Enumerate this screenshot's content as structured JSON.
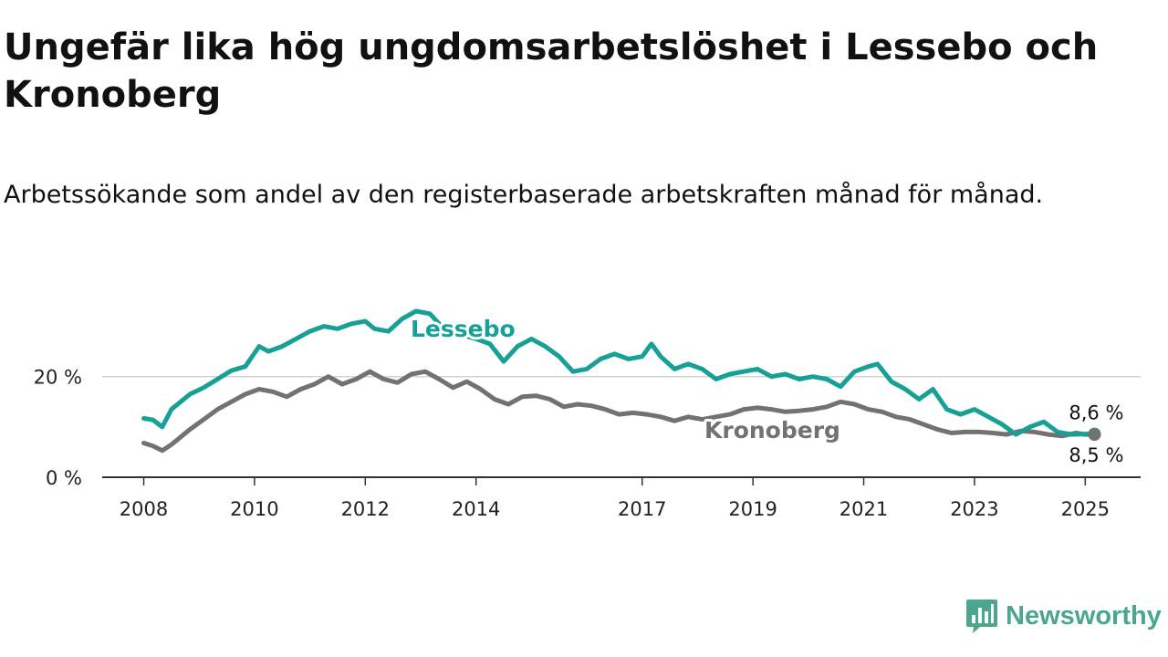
{
  "title": "Ungefär lika hög ungdomsarbetslöshet i Lessebo och Kronoberg",
  "subtitle": "Arbetssökande som andel av den registerbaserade arbetskraften månad för månad.",
  "brand": {
    "name": "Newsworthy",
    "icon": "chart-bubble-icon",
    "color": "#4aa68f"
  },
  "chart_data": {
    "type": "line",
    "x_tick_labels": [
      "2008",
      "2010",
      "2012",
      "2014",
      "2017",
      "2019",
      "2021",
      "2023",
      "2025"
    ],
    "y_tick_labels": [
      "0 %",
      "20 %"
    ],
    "xlim": [
      "2008-01",
      "2025-12"
    ],
    "ylim": [
      0,
      35
    ],
    "grid": true,
    "series": [
      {
        "name": "Lessebo",
        "color": "#17a196",
        "end_label": "8,6 %",
        "points": [
          [
            "2008-01",
            11.7
          ],
          [
            "2008-03",
            11.4
          ],
          [
            "2008-05",
            10.0
          ],
          [
            "2008-07",
            13.5
          ],
          [
            "2008-09",
            15.0
          ],
          [
            "2008-11",
            16.5
          ],
          [
            "2009-02",
            17.8
          ],
          [
            "2009-05",
            19.5
          ],
          [
            "2009-08",
            21.2
          ],
          [
            "2009-11",
            22.0
          ],
          [
            "2010-02",
            26.0
          ],
          [
            "2010-04",
            25.0
          ],
          [
            "2010-07",
            26.0
          ],
          [
            "2010-10",
            27.5
          ],
          [
            "2011-01",
            29.0
          ],
          [
            "2011-04",
            30.0
          ],
          [
            "2011-07",
            29.5
          ],
          [
            "2011-10",
            30.5
          ],
          [
            "2012-01",
            31.0
          ],
          [
            "2012-03",
            29.5
          ],
          [
            "2012-06",
            29.0
          ],
          [
            "2012-09",
            31.5
          ],
          [
            "2012-12",
            33.0
          ],
          [
            "2013-03",
            32.5
          ],
          [
            "2013-06",
            29.5
          ],
          [
            "2013-09",
            28.5
          ],
          [
            "2014-01",
            27.5
          ],
          [
            "2014-04",
            26.5
          ],
          [
            "2014-07",
            23.0
          ],
          [
            "2014-10",
            26.0
          ],
          [
            "2015-01",
            27.5
          ],
          [
            "2015-04",
            26.0
          ],
          [
            "2015-07",
            24.0
          ],
          [
            "2015-10",
            21.0
          ],
          [
            "2016-01",
            21.5
          ],
          [
            "2016-04",
            23.5
          ],
          [
            "2016-07",
            24.5
          ],
          [
            "2016-10",
            23.5
          ],
          [
            "2017-01",
            24.0
          ],
          [
            "2017-03",
            26.5
          ],
          [
            "2017-05",
            24.0
          ],
          [
            "2017-08",
            21.5
          ],
          [
            "2017-11",
            22.5
          ],
          [
            "2018-02",
            21.5
          ],
          [
            "2018-05",
            19.5
          ],
          [
            "2018-08",
            20.5
          ],
          [
            "2018-11",
            21.0
          ],
          [
            "2019-02",
            21.5
          ],
          [
            "2019-05",
            20.0
          ],
          [
            "2019-08",
            20.5
          ],
          [
            "2019-11",
            19.5
          ],
          [
            "2020-02",
            20.0
          ],
          [
            "2020-05",
            19.5
          ],
          [
            "2020-08",
            18.0
          ],
          [
            "2020-11",
            21.0
          ],
          [
            "2021-02",
            22.0
          ],
          [
            "2021-04",
            22.5
          ],
          [
            "2021-07",
            19.0
          ],
          [
            "2021-10",
            17.5
          ],
          [
            "2022-01",
            15.5
          ],
          [
            "2022-04",
            17.5
          ],
          [
            "2022-07",
            13.5
          ],
          [
            "2022-10",
            12.5
          ],
          [
            "2023-01",
            13.5
          ],
          [
            "2023-04",
            12.0
          ],
          [
            "2023-07",
            10.5
          ],
          [
            "2023-10",
            8.5
          ],
          [
            "2024-01",
            10.0
          ],
          [
            "2024-04",
            11.0
          ],
          [
            "2024-07",
            9.0
          ],
          [
            "2024-10",
            8.5
          ],
          [
            "2025-01",
            8.6
          ],
          [
            "2025-03",
            8.6
          ]
        ]
      },
      {
        "name": "Kronoberg",
        "color": "#727272",
        "end_label": "8,5 %",
        "points": [
          [
            "2008-01",
            6.8
          ],
          [
            "2008-03",
            6.2
          ],
          [
            "2008-05",
            5.3
          ],
          [
            "2008-07",
            6.5
          ],
          [
            "2008-09",
            8.0
          ],
          [
            "2008-11",
            9.5
          ],
          [
            "2009-02",
            11.5
          ],
          [
            "2009-05",
            13.5
          ],
          [
            "2009-08",
            15.0
          ],
          [
            "2009-11",
            16.5
          ],
          [
            "2010-02",
            17.5
          ],
          [
            "2010-05",
            17.0
          ],
          [
            "2010-08",
            16.0
          ],
          [
            "2010-11",
            17.5
          ],
          [
            "2011-02",
            18.5
          ],
          [
            "2011-05",
            20.0
          ],
          [
            "2011-08",
            18.5
          ],
          [
            "2011-11",
            19.5
          ],
          [
            "2012-02",
            21.0
          ],
          [
            "2012-05",
            19.5
          ],
          [
            "2012-08",
            18.8
          ],
          [
            "2012-11",
            20.5
          ],
          [
            "2013-02",
            21.0
          ],
          [
            "2013-05",
            19.5
          ],
          [
            "2013-08",
            17.8
          ],
          [
            "2013-11",
            19.0
          ],
          [
            "2014-02",
            17.5
          ],
          [
            "2014-05",
            15.5
          ],
          [
            "2014-08",
            14.5
          ],
          [
            "2014-11",
            16.0
          ],
          [
            "2015-02",
            16.2
          ],
          [
            "2015-05",
            15.5
          ],
          [
            "2015-08",
            14.0
          ],
          [
            "2015-11",
            14.5
          ],
          [
            "2016-02",
            14.2
          ],
          [
            "2016-05",
            13.5
          ],
          [
            "2016-08",
            12.5
          ],
          [
            "2016-11",
            12.8
          ],
          [
            "2017-02",
            12.5
          ],
          [
            "2017-05",
            12.0
          ],
          [
            "2017-08",
            11.2
          ],
          [
            "2017-11",
            12.0
          ],
          [
            "2018-02",
            11.5
          ],
          [
            "2018-05",
            12.0
          ],
          [
            "2018-08",
            12.5
          ],
          [
            "2018-11",
            13.5
          ],
          [
            "2019-02",
            13.8
          ],
          [
            "2019-05",
            13.5
          ],
          [
            "2019-08",
            13.0
          ],
          [
            "2019-11",
            13.2
          ],
          [
            "2020-02",
            13.5
          ],
          [
            "2020-05",
            14.0
          ],
          [
            "2020-08",
            15.0
          ],
          [
            "2020-11",
            14.5
          ],
          [
            "2021-02",
            13.5
          ],
          [
            "2021-05",
            13.0
          ],
          [
            "2021-08",
            12.0
          ],
          [
            "2021-11",
            11.5
          ],
          [
            "2022-02",
            10.5
          ],
          [
            "2022-05",
            9.5
          ],
          [
            "2022-08",
            8.8
          ],
          [
            "2022-11",
            9.0
          ],
          [
            "2023-02",
            9.0
          ],
          [
            "2023-05",
            8.8
          ],
          [
            "2023-08",
            8.5
          ],
          [
            "2023-11",
            9.2
          ],
          [
            "2024-02",
            9.0
          ],
          [
            "2024-05",
            8.5
          ],
          [
            "2024-08",
            8.2
          ],
          [
            "2024-11",
            8.8
          ],
          [
            "2025-01",
            8.5
          ],
          [
            "2025-03",
            8.5
          ]
        ]
      }
    ]
  }
}
